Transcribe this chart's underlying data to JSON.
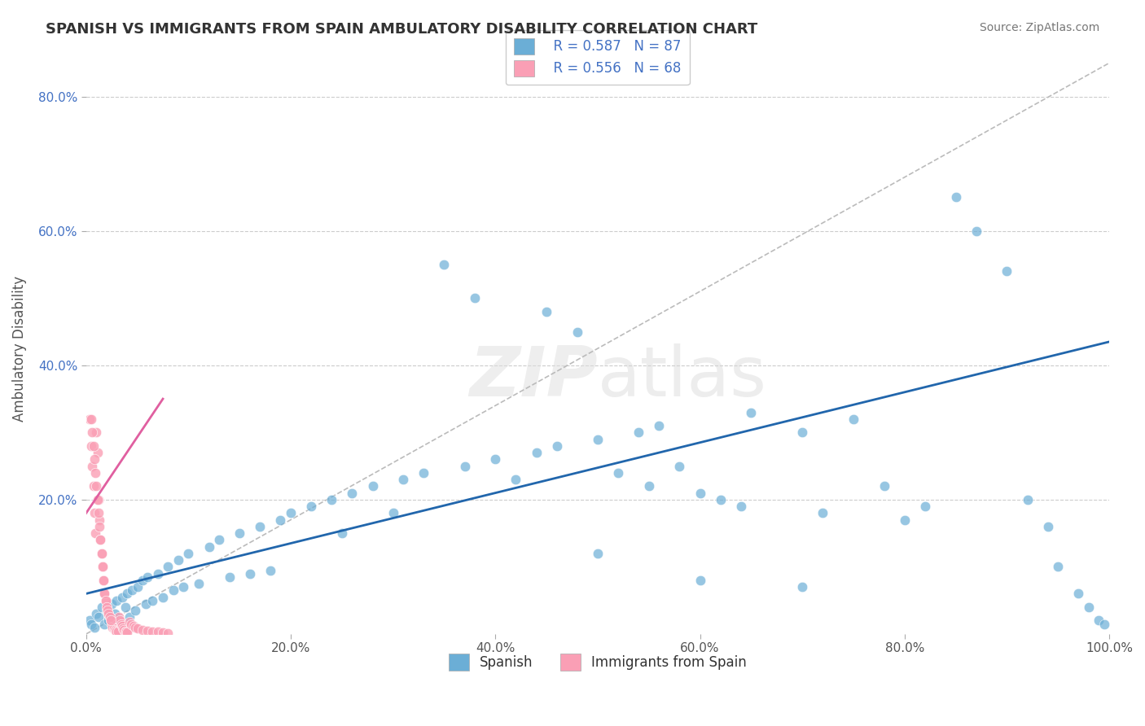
{
  "title": "SPANISH VS IMMIGRANTS FROM SPAIN AMBULATORY DISABILITY CORRELATION CHART",
  "source": "Source: ZipAtlas.com",
  "ylabel": "Ambulatory Disability",
  "xlim": [
    0,
    1.0
  ],
  "ylim": [
    0,
    0.85
  ],
  "legend_r1": "R = 0.587",
  "legend_n1": "N = 87",
  "legend_r2": "R = 0.556",
  "legend_n2": "N = 68",
  "blue_color": "#6baed6",
  "pink_color": "#fa9fb5",
  "blue_line_color": "#2166ac",
  "pink_line_color": "#e05fa0",
  "diagonal_color": "#bbbbbb",
  "blue_points": [
    [
      0.003,
      0.02
    ],
    [
      0.005,
      0.015
    ],
    [
      0.008,
      0.01
    ],
    [
      0.01,
      0.03
    ],
    [
      0.012,
      0.025
    ],
    [
      0.015,
      0.04
    ],
    [
      0.018,
      0.015
    ],
    [
      0.02,
      0.035
    ],
    [
      0.022,
      0.02
    ],
    [
      0.025,
      0.045
    ],
    [
      0.028,
      0.03
    ],
    [
      0.03,
      0.05
    ],
    [
      0.032,
      0.015
    ],
    [
      0.035,
      0.055
    ],
    [
      0.038,
      0.04
    ],
    [
      0.04,
      0.06
    ],
    [
      0.042,
      0.025
    ],
    [
      0.045,
      0.065
    ],
    [
      0.048,
      0.035
    ],
    [
      0.05,
      0.07
    ],
    [
      0.055,
      0.08
    ],
    [
      0.058,
      0.045
    ],
    [
      0.06,
      0.085
    ],
    [
      0.065,
      0.05
    ],
    [
      0.07,
      0.09
    ],
    [
      0.075,
      0.055
    ],
    [
      0.08,
      0.1
    ],
    [
      0.085,
      0.065
    ],
    [
      0.09,
      0.11
    ],
    [
      0.095,
      0.07
    ],
    [
      0.1,
      0.12
    ],
    [
      0.11,
      0.075
    ],
    [
      0.12,
      0.13
    ],
    [
      0.13,
      0.14
    ],
    [
      0.14,
      0.085
    ],
    [
      0.15,
      0.15
    ],
    [
      0.16,
      0.09
    ],
    [
      0.17,
      0.16
    ],
    [
      0.18,
      0.095
    ],
    [
      0.19,
      0.17
    ],
    [
      0.2,
      0.18
    ],
    [
      0.22,
      0.19
    ],
    [
      0.24,
      0.2
    ],
    [
      0.25,
      0.15
    ],
    [
      0.26,
      0.21
    ],
    [
      0.28,
      0.22
    ],
    [
      0.3,
      0.18
    ],
    [
      0.31,
      0.23
    ],
    [
      0.33,
      0.24
    ],
    [
      0.35,
      0.55
    ],
    [
      0.37,
      0.25
    ],
    [
      0.38,
      0.5
    ],
    [
      0.4,
      0.26
    ],
    [
      0.42,
      0.23
    ],
    [
      0.44,
      0.27
    ],
    [
      0.45,
      0.48
    ],
    [
      0.46,
      0.28
    ],
    [
      0.48,
      0.45
    ],
    [
      0.5,
      0.29
    ],
    [
      0.52,
      0.24
    ],
    [
      0.54,
      0.3
    ],
    [
      0.55,
      0.22
    ],
    [
      0.56,
      0.31
    ],
    [
      0.58,
      0.25
    ],
    [
      0.6,
      0.21
    ],
    [
      0.62,
      0.2
    ],
    [
      0.64,
      0.19
    ],
    [
      0.65,
      0.33
    ],
    [
      0.7,
      0.3
    ],
    [
      0.72,
      0.18
    ],
    [
      0.75,
      0.32
    ],
    [
      0.78,
      0.22
    ],
    [
      0.8,
      0.17
    ],
    [
      0.82,
      0.19
    ],
    [
      0.85,
      0.65
    ],
    [
      0.87,
      0.6
    ],
    [
      0.9,
      0.54
    ],
    [
      0.92,
      0.2
    ],
    [
      0.94,
      0.16
    ],
    [
      0.95,
      0.1
    ],
    [
      0.97,
      0.06
    ],
    [
      0.98,
      0.04
    ],
    [
      0.99,
      0.02
    ],
    [
      0.995,
      0.015
    ],
    [
      0.5,
      0.12
    ],
    [
      0.6,
      0.08
    ],
    [
      0.7,
      0.07
    ]
  ],
  "pink_points": [
    [
      0.003,
      0.32
    ],
    [
      0.005,
      0.28
    ],
    [
      0.006,
      0.25
    ],
    [
      0.007,
      0.22
    ],
    [
      0.008,
      0.18
    ],
    [
      0.009,
      0.15
    ],
    [
      0.01,
      0.3
    ],
    [
      0.011,
      0.27
    ],
    [
      0.012,
      0.2
    ],
    [
      0.013,
      0.17
    ],
    [
      0.014,
      0.14
    ],
    [
      0.015,
      0.12
    ],
    [
      0.016,
      0.1
    ],
    [
      0.017,
      0.08
    ],
    [
      0.018,
      0.06
    ],
    [
      0.019,
      0.05
    ],
    [
      0.02,
      0.04
    ],
    [
      0.021,
      0.035
    ],
    [
      0.022,
      0.03
    ],
    [
      0.023,
      0.025
    ],
    [
      0.024,
      0.02
    ],
    [
      0.025,
      0.015
    ],
    [
      0.026,
      0.01
    ],
    [
      0.027,
      0.008
    ],
    [
      0.028,
      0.006
    ],
    [
      0.029,
      0.005
    ],
    [
      0.03,
      0.004
    ],
    [
      0.031,
      0.003
    ],
    [
      0.032,
      0.025
    ],
    [
      0.033,
      0.02
    ],
    [
      0.034,
      0.015
    ],
    [
      0.035,
      0.012
    ],
    [
      0.036,
      0.008
    ],
    [
      0.037,
      0.006
    ],
    [
      0.038,
      0.004
    ],
    [
      0.039,
      0.003
    ],
    [
      0.04,
      0.002
    ],
    [
      0.042,
      0.018
    ],
    [
      0.044,
      0.015
    ],
    [
      0.046,
      0.012
    ],
    [
      0.048,
      0.01
    ],
    [
      0.05,
      0.008
    ],
    [
      0.055,
      0.006
    ],
    [
      0.06,
      0.005
    ],
    [
      0.065,
      0.004
    ],
    [
      0.07,
      0.003
    ],
    [
      0.075,
      0.002
    ],
    [
      0.08,
      0.001
    ],
    [
      0.005,
      0.32
    ],
    [
      0.006,
      0.3
    ],
    [
      0.007,
      0.28
    ],
    [
      0.008,
      0.26
    ],
    [
      0.009,
      0.24
    ],
    [
      0.01,
      0.22
    ],
    [
      0.011,
      0.2
    ],
    [
      0.012,
      0.18
    ],
    [
      0.013,
      0.16
    ],
    [
      0.014,
      0.14
    ],
    [
      0.015,
      0.12
    ],
    [
      0.016,
      0.1
    ],
    [
      0.017,
      0.08
    ],
    [
      0.018,
      0.06
    ],
    [
      0.019,
      0.05
    ],
    [
      0.02,
      0.04
    ],
    [
      0.021,
      0.035
    ],
    [
      0.022,
      0.03
    ],
    [
      0.023,
      0.025
    ],
    [
      0.024,
      0.02
    ]
  ],
  "blue_line": [
    [
      0.0,
      0.06
    ],
    [
      1.0,
      0.435
    ]
  ],
  "pink_line": [
    [
      0.0,
      0.18
    ],
    [
      0.075,
      0.35
    ]
  ],
  "diag_line": [
    [
      0.0,
      0.0
    ],
    [
      1.0,
      0.85
    ]
  ]
}
